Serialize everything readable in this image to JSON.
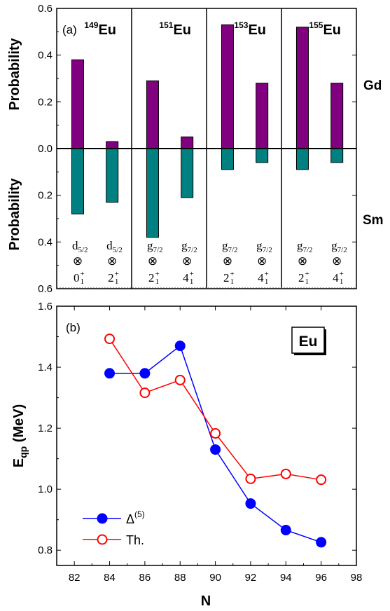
{
  "chart_data": [
    {
      "type": "bar",
      "panel_label": "(a)",
      "ylabel_top": "Probability",
      "ylabel_bottom": "Probability",
      "right_labels": {
        "top": "Gd",
        "bottom": "Sm"
      },
      "y_ticks": [
        "0.6",
        "0.4",
        "0.2",
        "0.0",
        "0.2",
        "0.4",
        "0.6"
      ],
      "ylim": [
        -0.6,
        0.6
      ],
      "groups": [
        {
          "mass": "149",
          "element": "Eu",
          "bars": [
            {
              "config": {
                "orbital": "d",
                "orbital_sub": "5/2",
                "otimes": "⊗",
                "state": "0",
                "state_sub": "1",
                "state_sup": "+"
              },
              "up": 0.38,
              "down": 0.28
            },
            {
              "config": {
                "orbital": "d",
                "orbital_sub": "5/2",
                "otimes": "⊗",
                "state": "2",
                "state_sub": "1",
                "state_sup": "+"
              },
              "up": 0.03,
              "down": 0.23
            }
          ]
        },
        {
          "mass": "151",
          "element": "Eu",
          "bars": [
            {
              "config": {
                "orbital": "g",
                "orbital_sub": "7/2",
                "otimes": "⊗",
                "state": "2",
                "state_sub": "1",
                "state_sup": "+"
              },
              "up": 0.29,
              "down": 0.38
            },
            {
              "config": {
                "orbital": "g",
                "orbital_sub": "7/2",
                "otimes": "⊗",
                "state": "4",
                "state_sub": "1",
                "state_sup": "+"
              },
              "up": 0.05,
              "down": 0.21
            }
          ]
        },
        {
          "mass": "153",
          "element": "Eu",
          "bars": [
            {
              "config": {
                "orbital": "g",
                "orbital_sub": "7/2",
                "otimes": "⊗",
                "state": "2",
                "state_sub": "1",
                "state_sup": "+"
              },
              "up": 0.53,
              "down": 0.09
            },
            {
              "config": {
                "orbital": "g",
                "orbital_sub": "7/2",
                "otimes": "⊗",
                "state": "4",
                "state_sub": "1",
                "state_sup": "+"
              },
              "up": 0.28,
              "down": 0.06
            }
          ]
        },
        {
          "mass": "155",
          "element": "Eu",
          "bars": [
            {
              "config": {
                "orbital": "g",
                "orbital_sub": "7/2",
                "otimes": "⊗",
                "state": "2",
                "state_sub": "1",
                "state_sup": "+"
              },
              "up": 0.52,
              "down": 0.09
            },
            {
              "config": {
                "orbital": "g",
                "orbital_sub": "7/2",
                "otimes": "⊗",
                "state": "4",
                "state_sub": "1",
                "state_sup": "+"
              },
              "up": 0.28,
              "down": 0.06
            }
          ]
        }
      ],
      "colors": {
        "up": "#800080",
        "down": "#008080"
      }
    },
    {
      "type": "line",
      "panel_label": "(b)",
      "box_label": "Eu",
      "xlabel": "N",
      "ylabel": "E",
      "ylabel_sub": "qp",
      "ylabel_unit": " (MeV)",
      "xlim": [
        81,
        98
      ],
      "ylim": [
        0.75,
        1.6
      ],
      "x_ticks": [
        "82",
        "84",
        "86",
        "88",
        "90",
        "92",
        "94",
        "96",
        "98"
      ],
      "y_ticks": [
        "0.8",
        "1.0",
        "1.2",
        "1.4",
        "1.6"
      ],
      "series": [
        {
          "name": "Δ",
          "name_sup": "(5)",
          "color": "#0000ff",
          "marker": "filled-circle",
          "x": [
            84,
            86,
            88,
            90,
            92,
            94,
            96
          ],
          "y": [
            1.38,
            1.38,
            1.47,
            1.13,
            0.953,
            0.866,
            0.826
          ]
        },
        {
          "name": "Th.",
          "color": "#ff0000",
          "marker": "open-circle",
          "x": [
            84,
            86,
            88,
            90,
            92,
            94,
            96
          ],
          "y": [
            1.493,
            1.316,
            1.358,
            1.183,
            1.034,
            1.05,
            1.031
          ]
        }
      ]
    }
  ]
}
